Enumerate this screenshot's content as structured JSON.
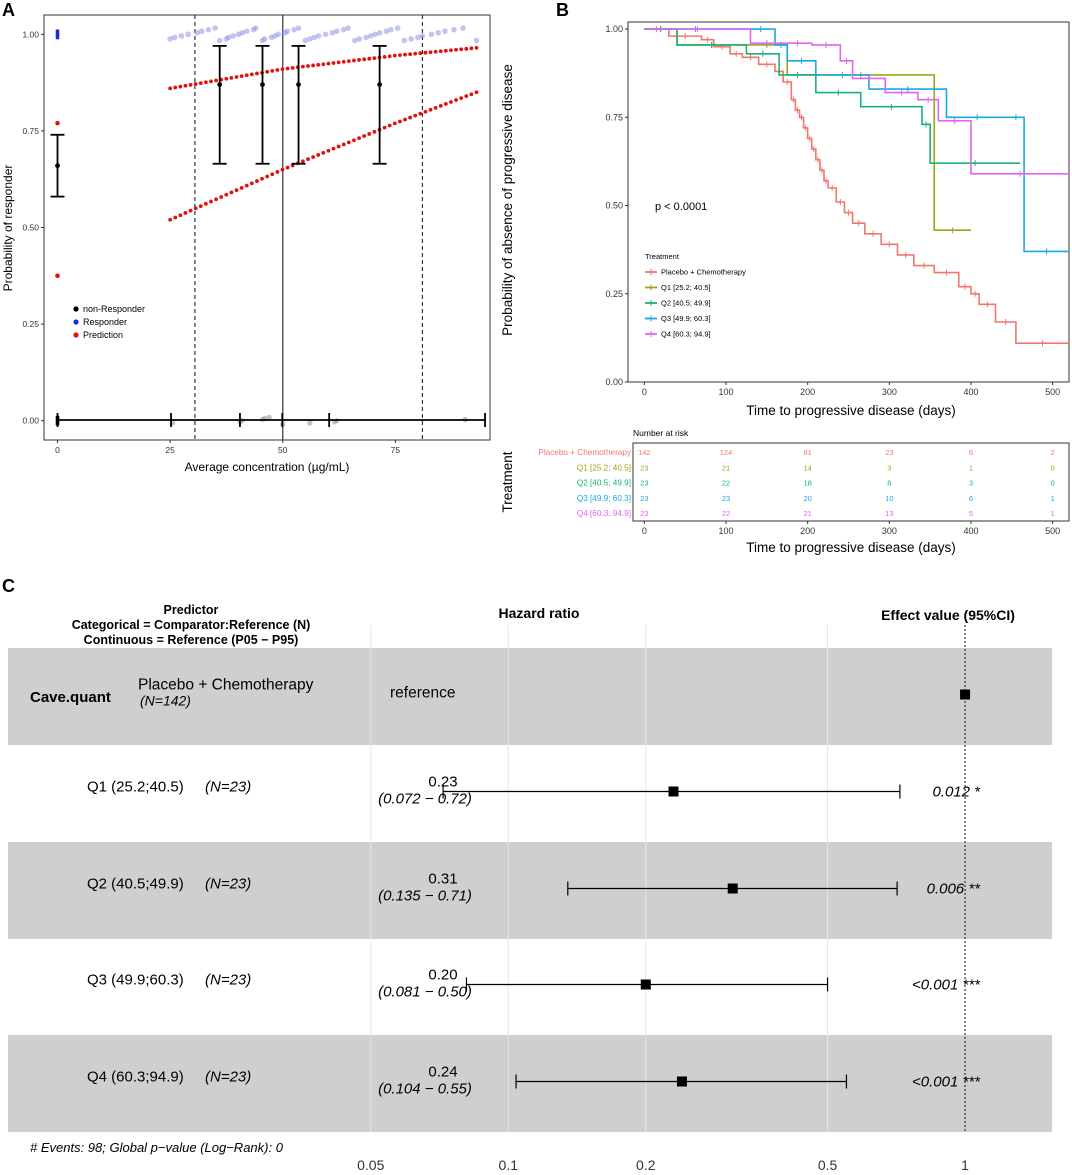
{
  "chart_data": [
    {
      "panel": "A",
      "type": "scatter",
      "xlabel": "Average concentration (µg/mL)",
      "ylabel": "Probability of responder",
      "xlim": [
        -3,
        96
      ],
      "ylim": [
        -0.05,
        1.05
      ],
      "x_ticks": [
        0,
        25,
        50,
        75
      ],
      "y_ticks": [
        "0.00",
        "0.25",
        "0.50",
        "0.75",
        "1.00"
      ],
      "legend": [
        "non-Responder",
        "Responder",
        "Prediction"
      ],
      "legend_colors": [
        "#000000",
        "#1530d6",
        "#e0120c"
      ],
      "dashed_vlines": [
        30.5,
        81
      ],
      "solid_vline": 50,
      "responder_points_x": [
        0,
        25,
        26,
        27.5,
        29,
        31,
        32,
        33.5,
        35,
        36,
        37.5,
        38,
        39,
        40.2,
        41,
        42,
        43.5,
        44,
        45.5,
        46,
        47.5,
        48.3,
        49,
        50.5,
        51,
        52.5,
        53.5,
        55,
        56,
        57,
        58,
        59.5,
        61,
        62,
        63.5,
        64.5,
        66,
        67,
        68.5,
        69.5,
        70.5,
        71.5,
        73,
        74,
        75.5,
        77,
        78.5,
        80,
        81,
        83,
        84.5,
        86,
        88,
        90,
        93
      ],
      "nonresponder_points_x": [
        0,
        25.5,
        40.5,
        41,
        45.5,
        46,
        47,
        50,
        56,
        61.5,
        62,
        90.5
      ],
      "observed_mean": [
        {
          "x": 0,
          "y": 0.66,
          "lo": 0.58,
          "hi": 0.74
        },
        {
          "x": 36,
          "y": 0.87,
          "lo": 0.665,
          "hi": 0.97
        },
        {
          "x": 45.5,
          "y": 0.87,
          "lo": 0.665,
          "hi": 0.97
        },
        {
          "x": 53.5,
          "y": 0.87,
          "lo": 0.665,
          "hi": 0.97
        },
        {
          "x": 71.5,
          "y": 0.87,
          "lo": 0.665,
          "hi": 0.97
        }
      ],
      "prediction_points_at_zero": [
        0.77,
        0.375
      ],
      "prediction_upper": {
        "x": [
          25,
          50,
          75,
          93
        ],
        "y": [
          0.86,
          0.91,
          0.945,
          0.965
        ]
      },
      "prediction_lower": {
        "x": [
          25,
          50,
          75,
          93
        ],
        "y": [
          0.52,
          0.65,
          0.77,
          0.85
        ]
      },
      "bin_edges": [
        0,
        25.2,
        40.5,
        49.9,
        60.3,
        94.9
      ]
    },
    {
      "panel": "B",
      "type": "line",
      "xlabel": "Time to progressive disease (days)",
      "ylabel": "Probability of absence of progressive disease",
      "xlim": [
        -20,
        520
      ],
      "ylim": [
        0,
        1.02
      ],
      "x_ticks": [
        0,
        100,
        200,
        300,
        400,
        500
      ],
      "y_ticks": [
        "0.00",
        "0.25",
        "0.50",
        "0.75",
        "1.00"
      ],
      "annotation": "p < 0.0001",
      "legend_title": "Treatment",
      "series": [
        {
          "name": "Placebo + Chemotherapy",
          "color": "#f0776e",
          "times": [
            0,
            30,
            70,
            85,
            105,
            120,
            140,
            160,
            170,
            180,
            185,
            190,
            195,
            200,
            205,
            210,
            215,
            220,
            225,
            235,
            245,
            255,
            270,
            290,
            310,
            330,
            355,
            385,
            400,
            410,
            430,
            455,
            520
          ],
          "surv": [
            1,
            0.98,
            0.97,
            0.95,
            0.93,
            0.92,
            0.9,
            0.88,
            0.85,
            0.8,
            0.77,
            0.75,
            0.72,
            0.69,
            0.66,
            0.63,
            0.6,
            0.57,
            0.55,
            0.51,
            0.48,
            0.45,
            0.42,
            0.39,
            0.36,
            0.33,
            0.31,
            0.27,
            0.25,
            0.22,
            0.17,
            0.11,
            0.11
          ]
        },
        {
          "name": "Q1 [25.2; 40.5]",
          "color": "#a3a31a",
          "times": [
            0,
            40,
            125,
            175,
            355,
            400
          ],
          "surv": [
            1,
            0.955,
            0.955,
            0.87,
            0.43,
            0.43
          ]
        },
        {
          "name": "Q2 [40.5; 49.9]",
          "color": "#19b27a",
          "times": [
            0,
            40,
            125,
            165,
            210,
            265,
            340,
            350,
            460
          ],
          "surv": [
            1,
            0.955,
            0.93,
            0.87,
            0.82,
            0.78,
            0.73,
            0.62,
            0.62
          ]
        },
        {
          "name": "Q3 [49.9; 60.3]",
          "color": "#1aa7e6",
          "times": [
            0,
            125,
            160,
            175,
            210,
            275,
            370,
            445,
            465,
            520
          ],
          "surv": [
            1,
            1,
            0.955,
            0.91,
            0.87,
            0.83,
            0.75,
            0.75,
            0.37,
            0.37
          ]
        },
        {
          "name": "Q4 [60.3; 94.9]",
          "color": "#e264f0",
          "times": [
            0,
            130,
            170,
            205,
            240,
            255,
            295,
            335,
            360,
            400,
            520
          ],
          "surv": [
            1,
            0.96,
            0.96,
            0.955,
            0.91,
            0.86,
            0.82,
            0.8,
            0.74,
            0.59,
            0.59
          ]
        }
      ]
    },
    {
      "panel": "B-risk",
      "type": "table",
      "title": "Number at risk",
      "ylabel": "Treatment",
      "xlabel": "Time to progressive disease (days)",
      "x_ticks": [
        0,
        100,
        200,
        300,
        400,
        500
      ],
      "rows": [
        {
          "label": "Placebo + Chemotherapy",
          "color": "#f0776e",
          "counts": [
            "142",
            "124",
            "81",
            "23",
            "6",
            "2"
          ]
        },
        {
          "label": "Q1 [25.2; 40.5]",
          "color": "#a3a31a",
          "counts": [
            "23",
            "21",
            "14",
            "3",
            "1",
            "0"
          ]
        },
        {
          "label": "Q2 [40.5; 49.9]",
          "color": "#19b27a",
          "counts": [
            "23",
            "22",
            "18",
            "8",
            "3",
            "0"
          ]
        },
        {
          "label": "Q3 [49.9; 60.3]",
          "color": "#1aa7e6",
          "counts": [
            "23",
            "23",
            "20",
            "10",
            "6",
            "1"
          ]
        },
        {
          "label": "Q4 [60.3; 94.9]",
          "color": "#e264f0",
          "counts": [
            "23",
            "22",
            "21",
            "13",
            "5",
            "1"
          ]
        }
      ]
    },
    {
      "panel": "C",
      "type": "forest",
      "predictor_header": [
        "Predictor",
        "Categorical = Comparator:Reference (N)",
        "Continuous = Reference (P05 − P95)"
      ],
      "hr_header": "Hazard ratio",
      "effect_header": "Effect value (95%CI)",
      "x_ticks": [
        "0.05",
        "0.1",
        "0.2",
        "0.5",
        "1"
      ],
      "x_tick_values": [
        0.05,
        0.1,
        0.2,
        0.5,
        1
      ],
      "xlim_log": [
        0.035,
        1.55
      ],
      "variable": "Cave.quant",
      "footer": "# Events: 98; Global p−value (Log−Rank): 0",
      "rows": [
        {
          "label": "Placebo + Chemotherapy",
          "n": "(N=142)",
          "hr_text": "reference",
          "ci_text": "",
          "hr": 1,
          "lo": null,
          "hi": null,
          "p": "",
          "shaded": true
        },
        {
          "label": "Q1 (25.2;40.5)",
          "n": "(N=23)",
          "hr_text": "0.23",
          "ci_text": "(0.072 − 0.72)",
          "hr": 0.23,
          "lo": 0.072,
          "hi": 0.72,
          "p": "0.012 *",
          "shaded": false
        },
        {
          "label": "Q2 (40.5;49.9)",
          "n": "(N=23)",
          "hr_text": "0.31",
          "ci_text": "(0.135 − 0.71)",
          "hr": 0.31,
          "lo": 0.135,
          "hi": 0.71,
          "p": "0.006 **",
          "shaded": true
        },
        {
          "label": "Q3 (49.9;60.3)",
          "n": "(N=23)",
          "hr_text": "0.20",
          "ci_text": "(0.081 − 0.50)",
          "hr": 0.2,
          "lo": 0.081,
          "hi": 0.5,
          "p": "<0.001 ***",
          "shaded": false
        },
        {
          "label": "Q4 (60.3;94.9)",
          "n": "(N=23)",
          "hr_text": "0.24",
          "ci_text": "(0.104 − 0.55)",
          "hr": 0.24,
          "lo": 0.104,
          "hi": 0.55,
          "p": "<0.001 ***",
          "shaded": true
        }
      ]
    }
  ],
  "panel_labels": [
    "A",
    "B",
    "C"
  ]
}
